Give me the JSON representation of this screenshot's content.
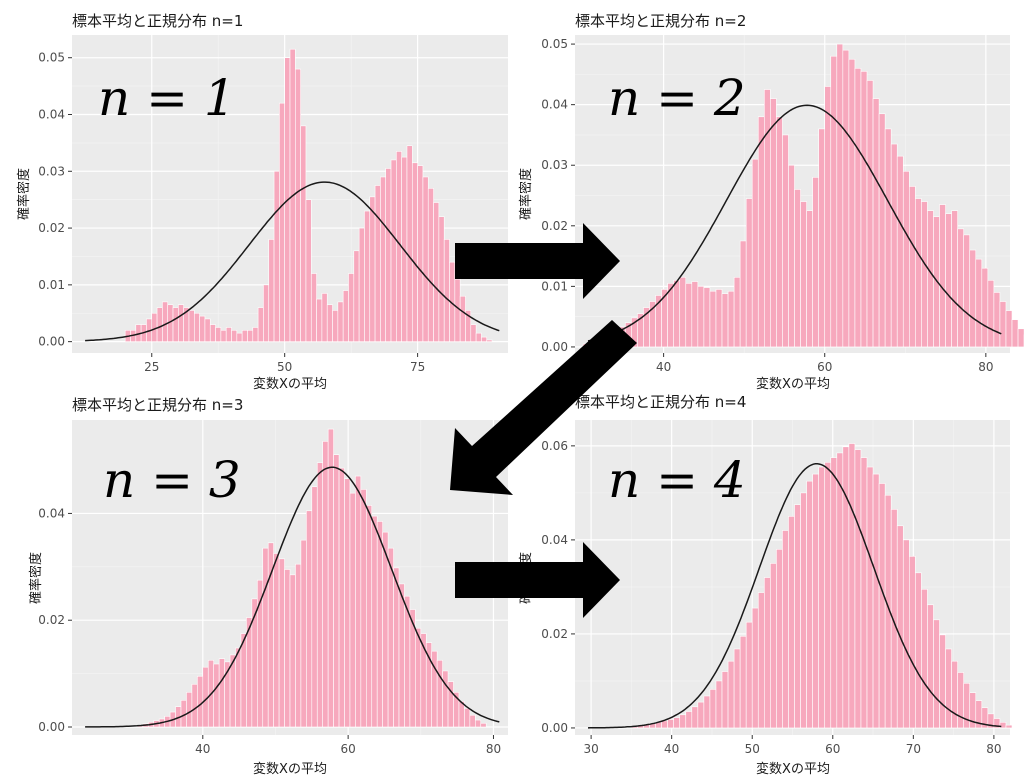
{
  "chart_data": [
    {
      "type": "bar",
      "title": "標本平均と正規分布 n=1",
      "annotation": "n = 1",
      "xlabel": "変数Xの平均",
      "ylabel": "確率密度",
      "xlim": [
        10,
        92
      ],
      "ylim": [
        -0.002,
        0.054
      ],
      "xticks": [
        25,
        50,
        75
      ],
      "yticks": [
        0.0,
        0.01,
        0.02,
        0.03,
        0.04,
        0.05
      ],
      "ytick_labels": [
        "0.00",
        "0.01",
        "0.02",
        "0.03",
        "0.04",
        "0.05"
      ],
      "bin_start": 20,
      "bin_width": 1,
      "values": [
        0.002,
        0.002,
        0.003,
        0.003,
        0.004,
        0.005,
        0.006,
        0.007,
        0.0065,
        0.006,
        0.0065,
        0.006,
        0.0055,
        0.005,
        0.0045,
        0.004,
        0.003,
        0.0025,
        0.002,
        0.0025,
        0.002,
        0.0015,
        0.002,
        0.002,
        0.0025,
        0.006,
        0.01,
        0.018,
        0.03,
        0.042,
        0.05,
        0.0515,
        0.048,
        0.038,
        0.025,
        0.012,
        0.0075,
        0.0085,
        0.0065,
        0.0055,
        0.007,
        0.009,
        0.012,
        0.016,
        0.02,
        0.023,
        0.0255,
        0.0275,
        0.029,
        0.0305,
        0.032,
        0.0335,
        0.0325,
        0.0345,
        0.0315,
        0.031,
        0.029,
        0.027,
        0.0245,
        0.022,
        0.018,
        0.014,
        0.011,
        0.008,
        0.0055,
        0.003,
        0.0015,
        0.0008,
        0.0003
      ],
      "curve": {
        "mean": 57.5,
        "sd": 14.2
      },
      "grid": true,
      "bar_color": "#f7a8bd",
      "line_color": "#1a1a1a",
      "panel_color": "#ebebeb"
    },
    {
      "type": "bar",
      "title": "標本平均と正規分布 n=2",
      "annotation": "n = 2",
      "xlabel": "変数Xの平均",
      "ylabel": "確率密度",
      "xlim": [
        29,
        83
      ],
      "ylim": [
        -0.001,
        0.0515
      ],
      "xticks": [
        40,
        60,
        80
      ],
      "yticks": [
        0.0,
        0.01,
        0.02,
        0.03,
        0.04,
        0.05
      ],
      "ytick_labels": [
        "0.00",
        "0.01",
        "0.02",
        "0.03",
        "0.04",
        "0.05"
      ],
      "bin_start": 30,
      "bin_width": 0.75,
      "values": [
        0.0005,
        0.0008,
        0.0012,
        0.0016,
        0.002,
        0.0027,
        0.0033,
        0.004,
        0.0048,
        0.0055,
        0.0065,
        0.0075,
        0.0085,
        0.0095,
        0.0105,
        0.011,
        0.0115,
        0.0105,
        0.0108,
        0.01,
        0.0098,
        0.0092,
        0.0095,
        0.0088,
        0.0092,
        0.0115,
        0.0175,
        0.0245,
        0.031,
        0.038,
        0.0425,
        0.041,
        0.038,
        0.035,
        0.03,
        0.026,
        0.024,
        0.0225,
        0.028,
        0.036,
        0.043,
        0.048,
        0.05,
        0.049,
        0.0475,
        0.046,
        0.0455,
        0.044,
        0.041,
        0.0385,
        0.036,
        0.0335,
        0.0315,
        0.029,
        0.0265,
        0.0245,
        0.024,
        0.0225,
        0.0215,
        0.0235,
        0.022,
        0.0225,
        0.0195,
        0.0185,
        0.016,
        0.0145,
        0.013,
        0.011,
        0.009,
        0.0075,
        0.006,
        0.0045,
        0.003,
        0.002,
        0.0012,
        0.0006,
        0.0003
      ],
      "curve": {
        "mean": 57.8,
        "sd": 10.0
      },
      "grid": true,
      "bar_color": "#f7a8bd",
      "line_color": "#1a1a1a",
      "panel_color": "#ebebeb"
    },
    {
      "type": "bar",
      "title": "標本平均と正規分布 n=3",
      "annotation": "n = 3",
      "xlabel": "変数Xの平均",
      "ylabel": "確率密度",
      "xlim": [
        22,
        82
      ],
      "ylim": [
        -0.0015,
        0.0575
      ],
      "xticks": [
        40,
        60,
        80
      ],
      "yticks": [
        0.0,
        0.02,
        0.04
      ],
      "ytick_labels": [
        "0.00",
        "0.02",
        "0.04"
      ],
      "bin_start": 31,
      "bin_width": 0.75,
      "values": [
        0.0003,
        0.0006,
        0.0009,
        0.0012,
        0.0015,
        0.002,
        0.0028,
        0.0038,
        0.005,
        0.0065,
        0.008,
        0.0095,
        0.0112,
        0.0125,
        0.0118,
        0.0128,
        0.0122,
        0.0135,
        0.0148,
        0.0175,
        0.0205,
        0.024,
        0.0275,
        0.0335,
        0.0345,
        0.0325,
        0.0315,
        0.0295,
        0.0285,
        0.0305,
        0.035,
        0.0405,
        0.045,
        0.0495,
        0.0535,
        0.0558,
        0.051,
        0.0485,
        0.0465,
        0.0438,
        0.047,
        0.0445,
        0.0415,
        0.0395,
        0.0385,
        0.0365,
        0.0335,
        0.0298,
        0.0268,
        0.0245,
        0.022,
        0.0185,
        0.0175,
        0.0158,
        0.0142,
        0.0125,
        0.0105,
        0.0085,
        0.0065,
        0.0048,
        0.0035,
        0.0022,
        0.0013,
        0.0007
      ],
      "curve": {
        "mean": 57.8,
        "sd": 8.2
      },
      "grid": true,
      "bar_color": "#f7a8bd",
      "line_color": "#1a1a1a",
      "panel_color": "#ebebeb"
    },
    {
      "type": "bar",
      "title": "標本平均と正規分布 n=4",
      "annotation": "n = 4",
      "xlabel": "変数Xの平均",
      "ylabel": "確率密度",
      "xlim": [
        28,
        82
      ],
      "ylim": [
        -0.0015,
        0.0655
      ],
      "xticks": [
        30,
        40,
        50,
        60,
        70,
        80
      ],
      "yticks": [
        0.0,
        0.02,
        0.04,
        0.06
      ],
      "ytick_labels": [
        "0.00",
        "0.02",
        "0.04",
        "0.06"
      ],
      "bin_start": 35,
      "bin_width": 0.75,
      "values": [
        0.0003,
        0.0005,
        0.0008,
        0.001,
        0.0012,
        0.0015,
        0.0018,
        0.0022,
        0.0028,
        0.0035,
        0.0045,
        0.0055,
        0.0068,
        0.0082,
        0.01,
        0.012,
        0.0142,
        0.0168,
        0.0195,
        0.0225,
        0.0255,
        0.0288,
        0.032,
        0.035,
        0.038,
        0.042,
        0.045,
        0.0475,
        0.05,
        0.0525,
        0.054,
        0.0555,
        0.0565,
        0.0575,
        0.0585,
        0.0598,
        0.0605,
        0.0592,
        0.0575,
        0.0555,
        0.054,
        0.052,
        0.0495,
        0.0465,
        0.043,
        0.04,
        0.0365,
        0.033,
        0.0295,
        0.0262,
        0.023,
        0.0198,
        0.0168,
        0.0142,
        0.0118,
        0.0095,
        0.0075,
        0.0058,
        0.0043,
        0.003,
        0.002,
        0.0012,
        0.0006
      ],
      "curve": {
        "mean": 58.0,
        "sd": 7.1
      },
      "grid": true,
      "bar_color": "#f7a8bd",
      "line_color": "#1a1a1a",
      "panel_color": "#ebebeb"
    }
  ]
}
